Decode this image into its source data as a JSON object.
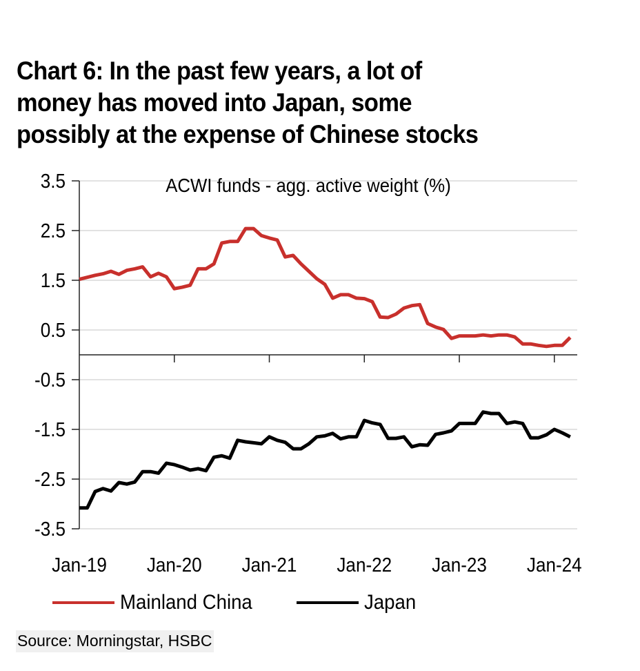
{
  "header": {
    "title_lines": [
      "Chart 6: In the past few years, a lot of",
      "money has moved into Japan, some",
      "possibly at the expense of Chinese stocks"
    ]
  },
  "source": "Source: Morningstar, HSBC",
  "colors": {
    "mainland_china": "#c8302c",
    "japan": "#000000",
    "gridline": "#d9d9d9",
    "axis": "#222222"
  },
  "chart_data": {
    "type": "line",
    "title": "ACWI funds - agg. active weight (%)",
    "xlabel": "",
    "ylabel": "",
    "ylim": [
      -3.5,
      3.5
    ],
    "yticks": [
      3.5,
      2.5,
      1.5,
      0.5,
      -0.5,
      -1.5,
      -2.5,
      -3.5
    ],
    "ytick_labels": [
      "3.5",
      "2.5",
      "1.5",
      "0.5",
      "-0.5",
      "-1.5",
      "-2.5",
      "-3.5"
    ],
    "xtick_labels": [
      "Jan-19",
      "Jan-20",
      "Jan-21",
      "Jan-22",
      "Jan-23",
      "Jan-24"
    ],
    "x_start": "Jan-19",
    "x_frequency": "monthly",
    "x_count": 63,
    "grid": true,
    "legend_position": "bottom",
    "series": [
      {
        "name": "Mainland China",
        "color": "#c8302c",
        "values": [
          1.52,
          1.56,
          1.6,
          1.63,
          1.68,
          1.62,
          1.7,
          1.73,
          1.77,
          1.57,
          1.64,
          1.57,
          1.33,
          1.36,
          1.4,
          1.73,
          1.73,
          1.83,
          2.25,
          2.28,
          2.28,
          2.54,
          2.54,
          2.4,
          2.35,
          2.31,
          1.97,
          2.0,
          1.83,
          1.68,
          1.53,
          1.42,
          1.14,
          1.21,
          1.21,
          1.14,
          1.13,
          1.07,
          0.76,
          0.75,
          0.82,
          0.94,
          0.99,
          1.01,
          0.63,
          0.56,
          0.51,
          0.33,
          0.38,
          0.38,
          0.38,
          0.4,
          0.38,
          0.4,
          0.4,
          0.36,
          0.22,
          0.22,
          0.19,
          0.17,
          0.19,
          0.19,
          0.35
        ]
      },
      {
        "name": "Japan",
        "color": "#000000",
        "values": [
          -3.08,
          -3.08,
          -2.75,
          -2.69,
          -2.74,
          -2.57,
          -2.6,
          -2.56,
          -2.35,
          -2.35,
          -2.38,
          -2.18,
          -2.21,
          -2.26,
          -2.32,
          -2.29,
          -2.33,
          -2.06,
          -2.03,
          -2.08,
          -1.72,
          -1.75,
          -1.77,
          -1.79,
          -1.65,
          -1.72,
          -1.76,
          -1.89,
          -1.89,
          -1.79,
          -1.65,
          -1.63,
          -1.58,
          -1.69,
          -1.65,
          -1.65,
          -1.32,
          -1.37,
          -1.4,
          -1.68,
          -1.68,
          -1.65,
          -1.85,
          -1.81,
          -1.82,
          -1.6,
          -1.57,
          -1.53,
          -1.38,
          -1.38,
          -1.38,
          -1.15,
          -1.18,
          -1.18,
          -1.38,
          -1.35,
          -1.38,
          -1.67,
          -1.67,
          -1.61,
          -1.5,
          -1.57,
          -1.65
        ]
      }
    ]
  }
}
